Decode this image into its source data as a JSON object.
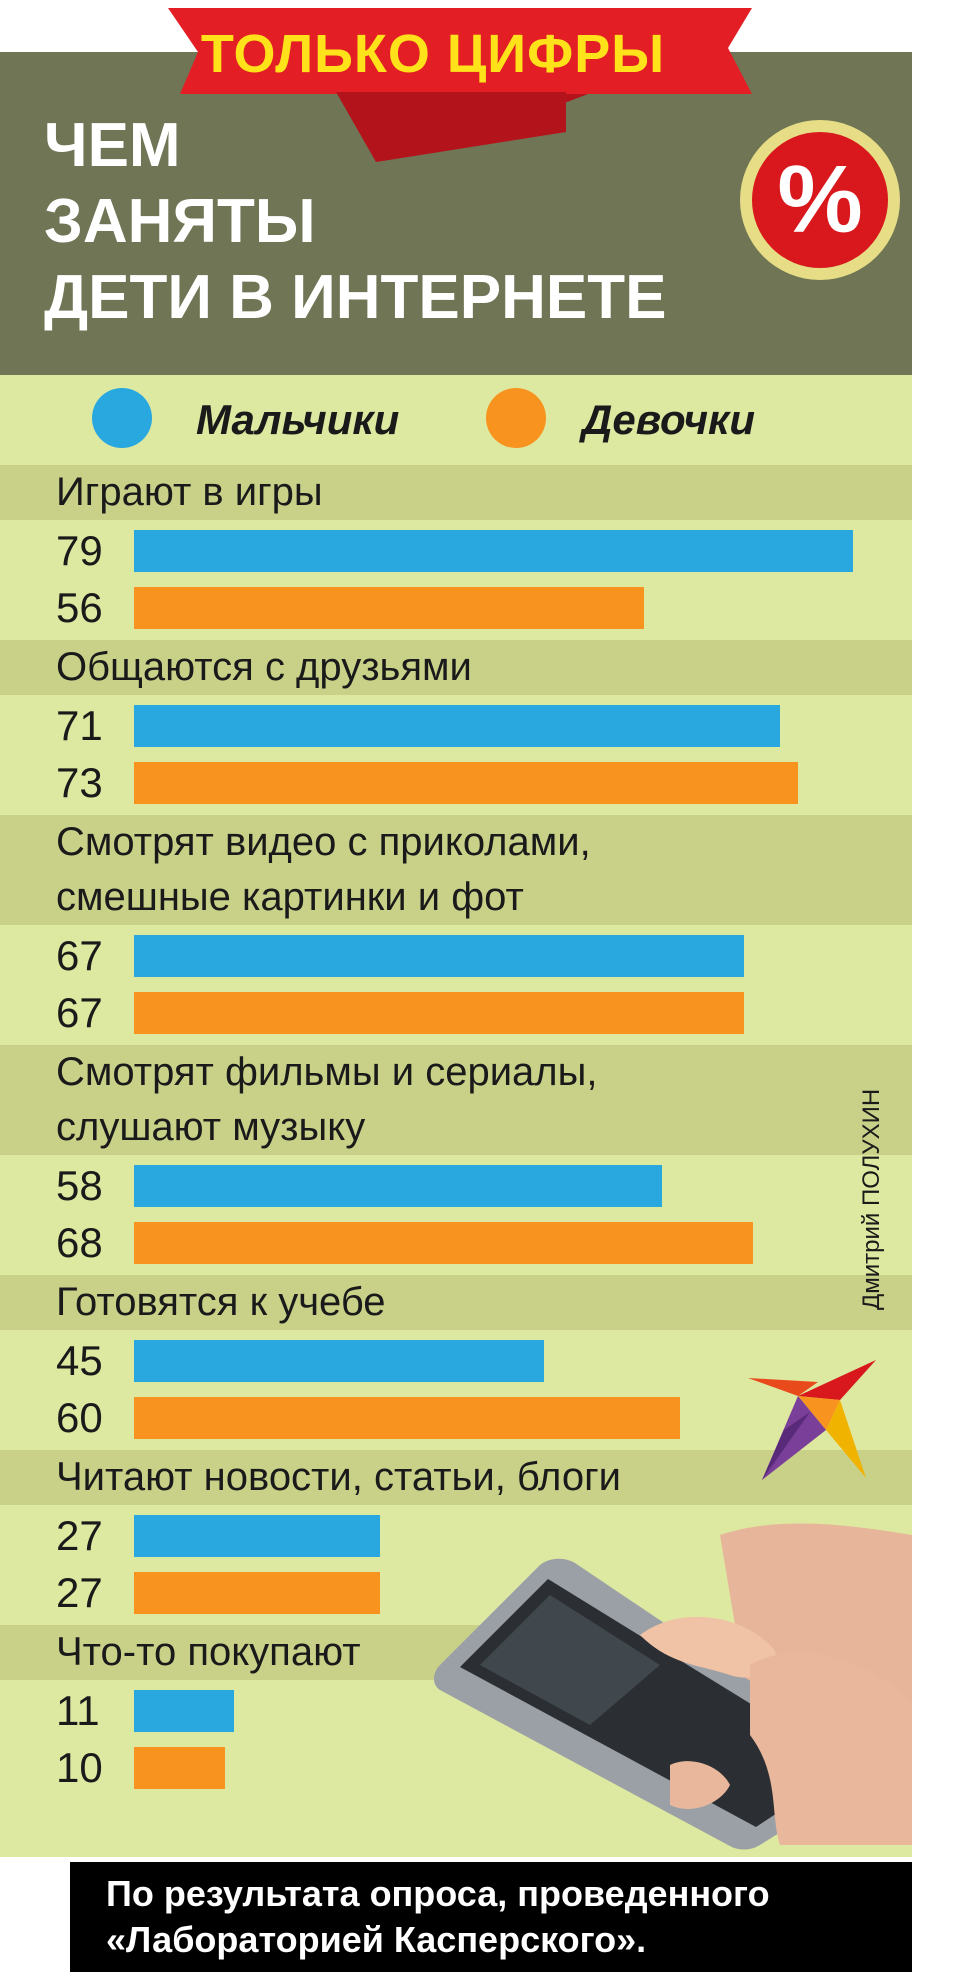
{
  "banner": "ТОЛЬКО ЦИФРЫ",
  "title_lines": [
    "ЧЕМ",
    "ЗАНЯТЫ",
    "ДЕТИ В ИНТЕРНЕТЕ"
  ],
  "badge": "%",
  "chart_data": {
    "type": "bar",
    "orientation": "horizontal",
    "categories": [
      "Играют в игры",
      "Общаются с друзьями",
      "Смотрят видео с приколами, смешные картинки и фот",
      "Смотрят фильмы и сериалы, слушают музыку",
      "Готовятся к учебе",
      "Читают новости, статьи, блоги",
      "Что-то покупают"
    ],
    "category_lines": [
      [
        "Играют в игры"
      ],
      [
        "Общаются с друзьями"
      ],
      [
        "Смотрят видео с приколами,",
        "смешные картинки и фот"
      ],
      [
        "Смотрят фильмы и сериалы,",
        "слушают музыку"
      ],
      [
        "Готовятся к учебе"
      ],
      [
        "Читают новости, статьи, блоги"
      ],
      [
        "Что-то покупают"
      ]
    ],
    "series": [
      {
        "name": "Мальчики",
        "color": "#29a8e0",
        "values": [
          79,
          71,
          67,
          58,
          45,
          27,
          11
        ]
      },
      {
        "name": "Девочки",
        "color": "#f7931e",
        "values": [
          56,
          73,
          67,
          68,
          60,
          27,
          10
        ]
      }
    ],
    "legend": "top",
    "grid": false
  },
  "credit": "Дмитрий ПОЛУХИН",
  "footer_lines": [
    "По результата опроса, проведенного",
    "«Лабораторией Касперского»."
  ],
  "colors": {
    "header": "#6f7555",
    "chart_bg": "#dde8a0",
    "band": "#c9d189",
    "banner_red": "#e31e24",
    "banner_text": "#ffe21a",
    "badge_red": "#d8181c"
  }
}
